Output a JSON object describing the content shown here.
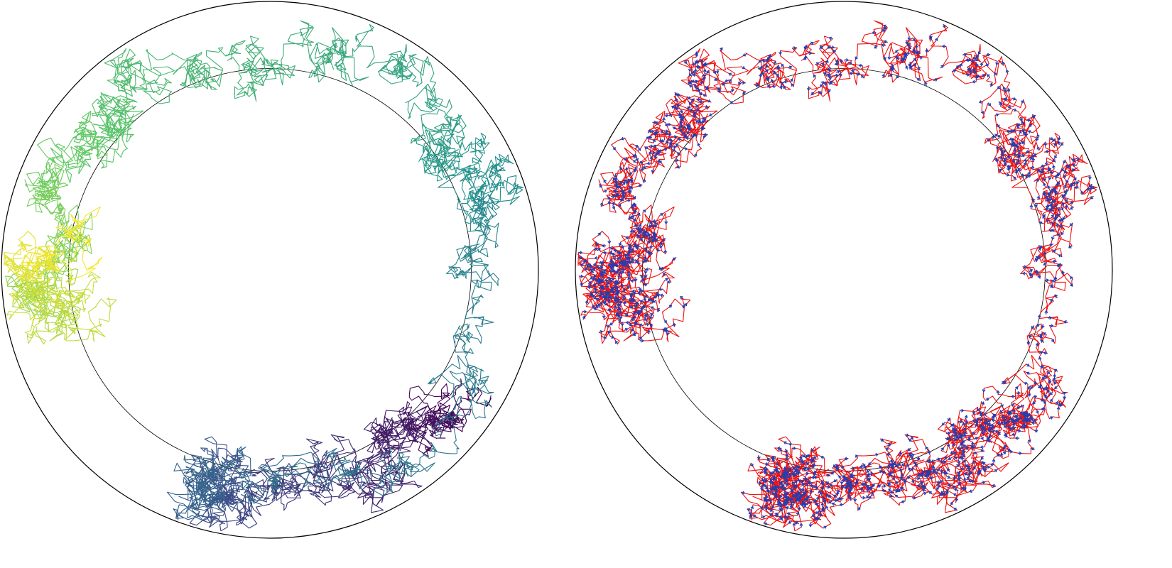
{
  "chart_data": [
    {
      "type": "line",
      "title": "",
      "xlabel": "",
      "ylabel": "",
      "grid": false,
      "legend": "none",
      "coordinate_system": "polar-disk",
      "axis_range": {
        "x": [
          -1,
          1
        ],
        "y": [
          -1,
          1
        ]
      },
      "reference_circles": [
        {
          "name": "outer",
          "radius": 1.0,
          "color": "#000000"
        },
        {
          "name": "inner",
          "radius": 0.75,
          "color": "#000000"
        }
      ],
      "coloring": "viridis-by-time",
      "series": [
        {
          "random_walk_around_ring": true,
          "start": {
            "x": 0.77,
            "y": -0.45
          },
          "time_steps": 5200,
          "mean_radius": 0.82,
          "angle_path_deg": [
            -35,
            -60,
            -100,
            -110,
            10,
            40,
            120,
            160,
            195,
            170
          ],
          "color_map_stops": [
            "#440154",
            "#3b528b",
            "#21918c",
            "#5ec962",
            "#fde725"
          ]
        }
      ]
    },
    {
      "type": "line",
      "title": "",
      "xlabel": "",
      "ylabel": "",
      "grid": false,
      "legend": "none",
      "coordinate_system": "polar-disk",
      "axis_range": {
        "x": [
          -1,
          1
        ],
        "y": [
          -1,
          1
        ]
      },
      "reference_circles": [
        {
          "name": "outer",
          "radius": 1.0,
          "color": "#000000"
        },
        {
          "name": "inner",
          "radius": 0.75,
          "color": "#000000"
        }
      ],
      "series": [
        {
          "style": "path",
          "color": "#ee1111"
        },
        {
          "style": "arrows",
          "color": "#1f3fb4"
        }
      ],
      "same_trajectory_as": 0
    }
  ]
}
